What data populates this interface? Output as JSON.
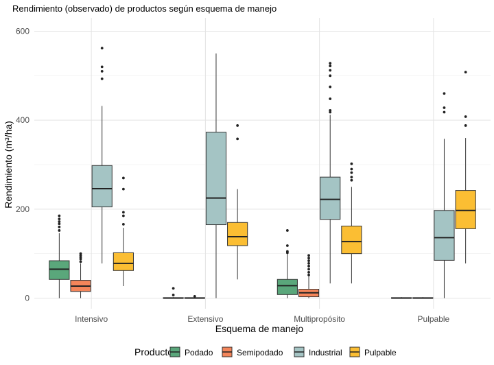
{
  "chart_data": {
    "type": "boxplot",
    "title": "Rendimiento (observado) de productos según esquema de manejo",
    "xlabel": "Esquema de manejo",
    "ylabel": "Rendimiento (m³/ha)",
    "ylim": [
      -25,
      620
    ],
    "yticks": [
      0,
      200,
      400,
      600
    ],
    "categories": [
      "Intensivo",
      "Extensivo",
      "Multipropósito",
      "Pulpable"
    ],
    "legend": {
      "title": "Producto",
      "position": "bottom"
    },
    "grid": true,
    "series": [
      {
        "name": "Podado",
        "color": "#5aa77b",
        "boxes": [
          {
            "min": 0,
            "q1": 42,
            "median": 65,
            "q3": 84,
            "max": 146,
            "outliers": [
              152,
              160,
              167,
              172,
              178,
              185
            ]
          },
          {
            "min": 0,
            "q1": 0,
            "median": 0,
            "q3": 1,
            "max": 2,
            "outliers": [
              7,
              22
            ]
          },
          {
            "min": 0,
            "q1": 8,
            "median": 28,
            "q3": 42,
            "max": 100,
            "outliers": [
              102,
              105,
              118,
              152
            ]
          },
          {
            "min": 0,
            "q1": 0,
            "median": 0,
            "q3": 1,
            "max": 2,
            "outliers": []
          }
        ]
      },
      {
        "name": "Semipodado",
        "color": "#f4855a",
        "boxes": [
          {
            "min": 0,
            "q1": 15,
            "median": 27,
            "q3": 40,
            "max": 78,
            "outliers": [
              82,
              88,
              92,
              96,
              100
            ]
          },
          {
            "min": 0,
            "q1": 0,
            "median": 0,
            "q3": 1,
            "max": 2,
            "outliers": [
              4
            ]
          },
          {
            "min": 0,
            "q1": 3,
            "median": 12,
            "q3": 20,
            "max": 50,
            "outliers": [
              52,
              58,
              65,
              72,
              78,
              84,
              90,
              96
            ]
          },
          {
            "min": 0,
            "q1": 0,
            "median": 0,
            "q3": 1,
            "max": 2,
            "outliers": []
          }
        ]
      },
      {
        "name": "Industrial",
        "color": "#a4c4c4",
        "boxes": [
          {
            "min": 78,
            "q1": 205,
            "median": 246,
            "q3": 298,
            "max": 432,
            "outliers": [
              493,
              510,
              520,
              562
            ]
          },
          {
            "min": 0,
            "q1": 165,
            "median": 225,
            "q3": 373,
            "max": 550,
            "outliers": []
          },
          {
            "min": 33,
            "q1": 177,
            "median": 222,
            "q3": 272,
            "max": 412,
            "outliers": [
              418,
              422,
              448,
              475,
              500,
              512,
              522,
              528
            ]
          },
          {
            "min": 0,
            "q1": 85,
            "median": 136,
            "q3": 197,
            "max": 358,
            "outliers": [
              418,
              428,
              460
            ]
          }
        ]
      },
      {
        "name": "Pulpable",
        "color": "#fbbe33",
        "boxes": [
          {
            "min": 27,
            "q1": 62,
            "median": 78,
            "q3": 102,
            "max": 158,
            "outliers": [
              166,
              185,
              193,
              245,
              270
            ]
          },
          {
            "min": 42,
            "q1": 118,
            "median": 138,
            "q3": 170,
            "max": 245,
            "outliers": [
              358,
              388
            ]
          },
          {
            "min": 33,
            "q1": 100,
            "median": 127,
            "q3": 162,
            "max": 250,
            "outliers": [
              265,
              272,
              282,
              290,
              302
            ]
          },
          {
            "min": 78,
            "q1": 156,
            "median": 197,
            "q3": 242,
            "max": 360,
            "outliers": [
              388,
              408,
              508
            ]
          }
        ]
      }
    ]
  }
}
